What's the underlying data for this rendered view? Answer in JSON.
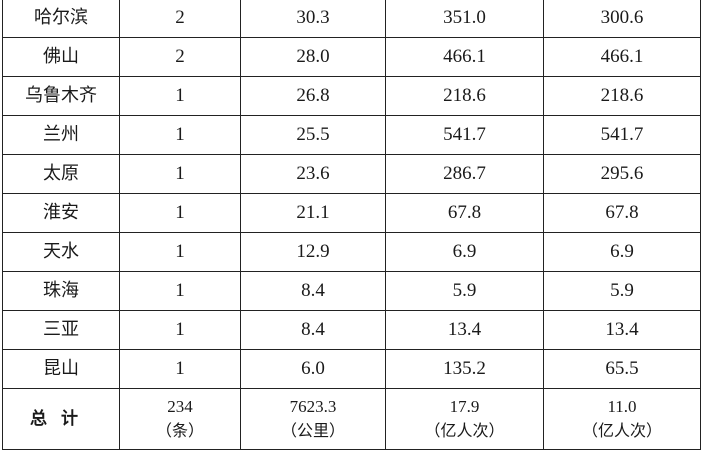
{
  "rows": [
    {
      "city": "哈尔滨",
      "lines": "2",
      "length": "30.3",
      "col4": "351.0",
      "col5": "300.6"
    },
    {
      "city": "佛山",
      "lines": "2",
      "length": "28.0",
      "col4": "466.1",
      "col5": "466.1"
    },
    {
      "city": "乌鲁木齐",
      "lines": "1",
      "length": "26.8",
      "col4": "218.6",
      "col5": "218.6"
    },
    {
      "city": "兰州",
      "lines": "1",
      "length": "25.5",
      "col4": "541.7",
      "col5": "541.7"
    },
    {
      "city": "太原",
      "lines": "1",
      "length": "23.6",
      "col4": "286.7",
      "col5": "295.6"
    },
    {
      "city": "淮安",
      "lines": "1",
      "length": "21.1",
      "col4": "67.8",
      "col5": "67.8"
    },
    {
      "city": "天水",
      "lines": "1",
      "length": "12.9",
      "col4": "6.9",
      "col5": "6.9"
    },
    {
      "city": "珠海",
      "lines": "1",
      "length": "8.4",
      "col4": "5.9",
      "col5": "5.9"
    },
    {
      "city": "三亚",
      "lines": "1",
      "length": "8.4",
      "col4": "13.4",
      "col5": "13.4"
    },
    {
      "city": "昆山",
      "lines": "1",
      "length": "6.0",
      "col4": "135.2",
      "col5": "65.5"
    }
  ],
  "total": {
    "label": "总计",
    "lines": "234",
    "lines_unit": "（条）",
    "length": "7623.3",
    "length_unit": "（公里）",
    "col4": "17.9",
    "col4_unit": "（亿人次）",
    "col5": "11.0",
    "col5_unit": "（亿人次）"
  }
}
